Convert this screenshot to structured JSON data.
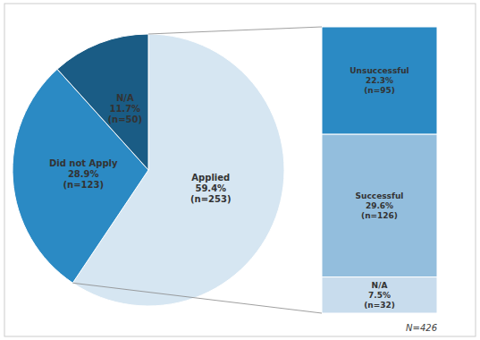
{
  "chart_data": [
    {
      "type": "pie",
      "categories": [
        "Applied",
        "Did not Apply",
        "N/A"
      ],
      "values": [
        59.4,
        28.9,
        11.7
      ],
      "value_labels": [
        "59.4%",
        "28.9%",
        "11.7%"
      ],
      "count_labels": [
        "(n=253)",
        "(n=123)",
        "(n=50)"
      ],
      "colors": [
        "#d6e6f2",
        "#2b8ac4",
        "#1a5c85"
      ],
      "data_labels": true
    },
    {
      "type": "bar",
      "stacked": true,
      "categories": [
        "Unsuccessful",
        "Successful",
        "N/A"
      ],
      "values": [
        22.3,
        29.6,
        7.5
      ],
      "value_labels": [
        "22.3%",
        "29.6%",
        "7.5%"
      ],
      "count_labels": [
        "(n=95)",
        "(n=126)",
        "(n=32)"
      ],
      "colors": [
        "#2b8ac4",
        "#93bedd",
        "#c8dced"
      ],
      "ylim": [
        0,
        59.4
      ],
      "tick_labels": false,
      "data_labels": true,
      "annotations": [
        "N=426"
      ]
    }
  ]
}
